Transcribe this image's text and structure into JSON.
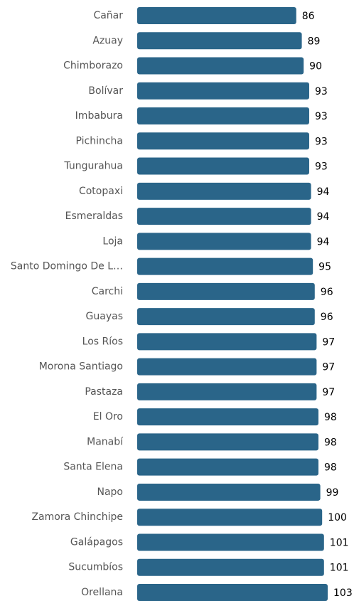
{
  "chart_data": {
    "type": "bar",
    "orientation": "horizontal",
    "color": "#2a6589",
    "categories": [
      "Cañar",
      "Azuay",
      "Chimborazo",
      "Bolívar",
      "Imbabura",
      "Pichincha",
      "Tungurahua",
      "Cotopaxi",
      "Esmeraldas",
      "Loja",
      "Santo Domingo De L…",
      "Carchi",
      "Guayas",
      "Los Ríos",
      "Morona Santiago",
      "Pastaza",
      "El Oro",
      "Manabí",
      "Santa Elena",
      "Napo",
      "Zamora Chinchipe",
      "Galápagos",
      "Sucumbíos",
      "Orellana"
    ],
    "values": [
      86,
      89,
      90,
      93,
      93,
      93,
      93,
      94,
      94,
      94,
      95,
      96,
      96,
      97,
      97,
      97,
      98,
      98,
      98,
      99,
      100,
      101,
      101,
      103
    ]
  }
}
